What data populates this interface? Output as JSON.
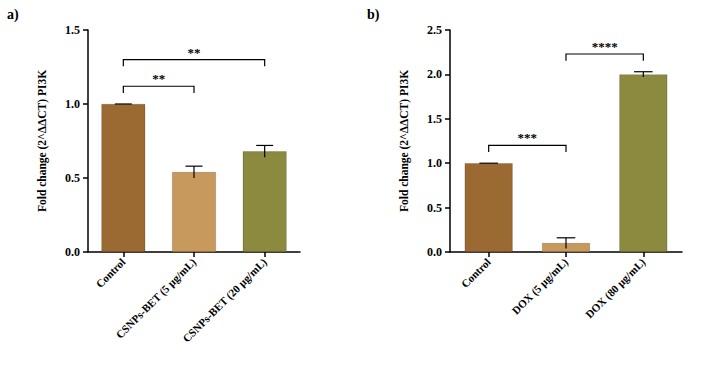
{
  "chart_data": [
    {
      "type": "bar",
      "title": "a)",
      "categories": [
        "Control",
        "CSNPs-BET (5 µg/mL)",
        "CSNPs-BET (20 µg/mL)"
      ],
      "values": [
        1.0,
        0.54,
        0.68
      ],
      "errors": [
        0,
        0.04,
        0.04
      ],
      "colors": [
        "#9b6a33",
        "#c8995d",
        "#8b8a3f"
      ],
      "ylabel": "Fold change (2^ΔΔCT) PI3K",
      "ylim": [
        0,
        1.5
      ],
      "yticks": [
        {
          "value": 0,
          "label": "0.0"
        },
        0.5,
        {
          "value": 1,
          "label": "1.0"
        },
        1.5
      ],
      "annotations": [
        {
          "from": "Control",
          "to": "CSNPs-BET (5 µg/mL)",
          "label": "**"
        },
        {
          "from": "Control",
          "to": "CSNPs-BET (20 µg/mL)",
          "label": "**"
        }
      ]
    },
    {
      "type": "bar",
      "title": "b)",
      "categories": [
        "Control",
        "DOX (5 µg/mL)",
        "DOX (80 µg/mL)"
      ],
      "values": [
        1.0,
        0.1,
        2.0
      ],
      "errors": [
        0,
        0.06,
        0.03
      ],
      "colors": [
        "#9b6a33",
        "#c8995d",
        "#8b8a3f"
      ],
      "ylabel": "Fold change (2^ΔΔCT) PI3K",
      "ylim": [
        0,
        2.5
      ],
      "yticks": [
        {
          "value": 0,
          "label": "0.0"
        },
        0.5,
        {
          "value": 1,
          "label": "1.0"
        },
        1.5,
        {
          "value": 2,
          "label": "2.0"
        },
        2.5
      ],
      "annotations": [
        {
          "from": "Control",
          "to": "DOX (5 µg/mL)",
          "label": "***"
        },
        {
          "from": "DOX (5 µg/mL)",
          "to": "DOX (80 µg/mL)",
          "label": "****"
        }
      ]
    }
  ]
}
